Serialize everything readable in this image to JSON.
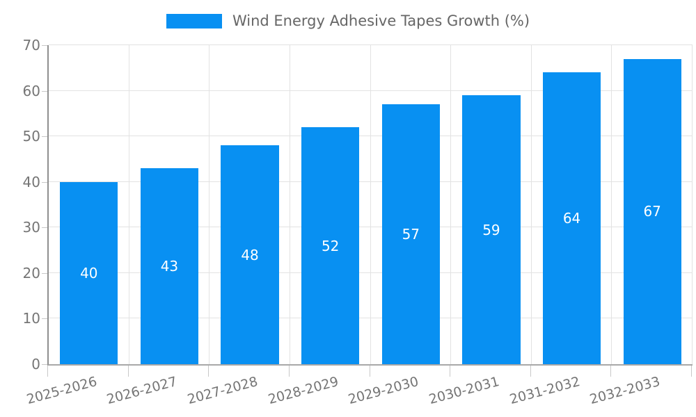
{
  "legend": {
    "label": "Wind Energy Adhesive Tapes Growth (%)"
  },
  "chart_data": {
    "type": "bar",
    "title": "Wind Energy Adhesive Tapes Growth (%)",
    "categories": [
      "2025-2026",
      "2026-2027",
      "2027-2028",
      "2028-2029",
      "2029-2030",
      "2030-2031",
      "2031-2032",
      "2032-2033"
    ],
    "values": [
      40,
      43,
      48,
      52,
      57,
      59,
      64,
      67
    ],
    "xlabel": "",
    "ylabel": "",
    "ylim": [
      0,
      70
    ],
    "yticks": [
      0,
      10,
      20,
      30,
      40,
      50,
      60,
      70
    ],
    "grid": true,
    "legend_position": "top-center",
    "bar_color": "#0890f2",
    "bar_label_color": "#ffffff",
    "axis_text_color": "#757575",
    "legend_text_color": "#666666",
    "gridline_color": "#e2e2e2"
  }
}
